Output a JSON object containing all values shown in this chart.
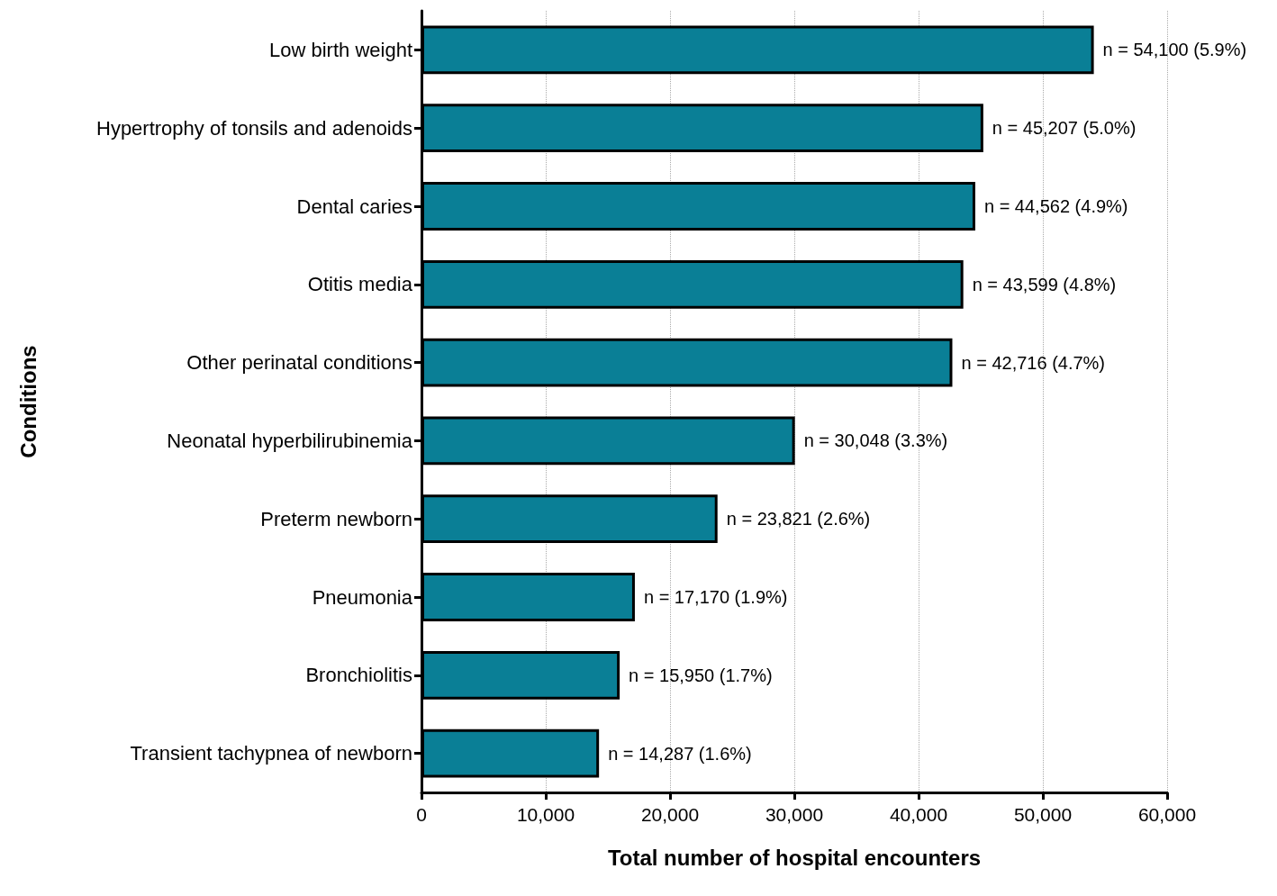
{
  "chart_data": {
    "type": "bar",
    "orientation": "horizontal",
    "xlabel": "Total number of hospital encounters",
    "ylabel": "Conditions",
    "categories": [
      "Low birth weight",
      "Hypertrophy of tonsils and adenoids",
      "Dental caries",
      "Otitis media",
      "Other perinatal conditions",
      "Neonatal hyperbilirubinemia",
      "Preterm newborn",
      "Pneumonia",
      "Bronchiolitis",
      "Transient tachypnea of newborn"
    ],
    "values": [
      54100,
      45207,
      44562,
      43599,
      42716,
      30048,
      23821,
      17170,
      15950,
      14287
    ],
    "value_labels": [
      "n = 54,100 (5.9%)",
      "n = 45,207 (5.0%)",
      "n = 44,562 (4.9%)",
      "n = 43,599 (4.8%)",
      "n = 42,716 (4.7%)",
      "n = 30,048 (3.3%)",
      "n = 23,821 (2.6%)",
      "n = 17,170 (1.9%)",
      "n = 15,950 (1.7%)",
      "n = 14,287 (1.6%)"
    ],
    "color": "#0a7f96",
    "xlim": [
      0,
      60000
    ],
    "xticks": [
      0,
      {
        "value": 10000,
        "label": "10,000"
      },
      {
        "value": 20000,
        "label": "20,000"
      },
      {
        "value": 30000,
        "label": "30,000"
      },
      {
        "value": 40000,
        "label": "40,000"
      },
      {
        "value": 50000,
        "label": "50,000"
      },
      {
        "value": 60000,
        "label": "60,000"
      }
    ],
    "grid": "x"
  }
}
